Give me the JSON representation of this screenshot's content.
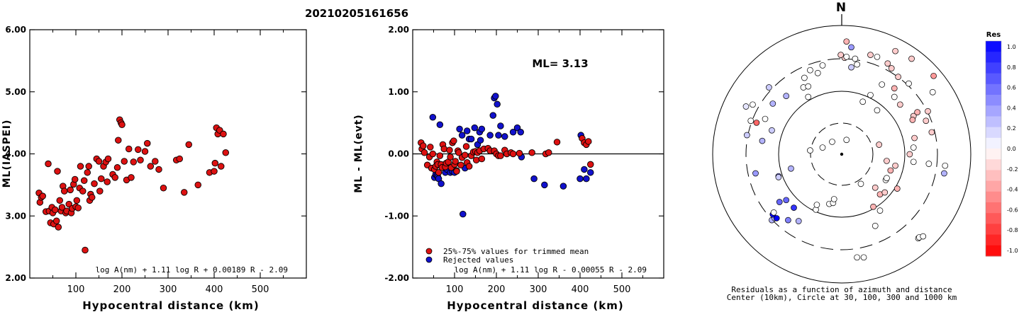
{
  "title": "20210205161656",
  "chart_data": [
    {
      "type": "scatter",
      "name": "left",
      "xlabel": "Hypocentral distance (km)",
      "ylabel": "ML(IASPEI)",
      "xlim": [
        0,
        600
      ],
      "ylim": [
        2.0,
        6.0
      ],
      "xticks": [
        "100",
        "200",
        "300",
        "400",
        "500"
      ],
      "yticks": [
        "2.00",
        "3.00",
        "4.00",
        "5.00",
        "6.00"
      ],
      "formula": "log A(nm) + 1.11 log R + 0.00189 R - 2.09",
      "points": [
        [
          20,
          3.37
        ],
        [
          22,
          3.22
        ],
        [
          25,
          3.3
        ],
        [
          28,
          3.32
        ],
        [
          35,
          3.07
        ],
        [
          40,
          3.84
        ],
        [
          42,
          3.08
        ],
        [
          45,
          2.89
        ],
        [
          48,
          3.14
        ],
        [
          50,
          3.05
        ],
        [
          52,
          2.87
        ],
        [
          55,
          3.1
        ],
        [
          58,
          2.92
        ],
        [
          60,
          3.72
        ],
        [
          62,
          2.82
        ],
        [
          65,
          3.25
        ],
        [
          68,
          3.08
        ],
        [
          70,
          3.14
        ],
        [
          72,
          3.48
        ],
        [
          75,
          3.4
        ],
        [
          78,
          3.05
        ],
        [
          80,
          3.08
        ],
        [
          85,
          3.19
        ],
        [
          88,
          3.42
        ],
        [
          90,
          3.05
        ],
        [
          92,
          3.12
        ],
        [
          95,
          3.51
        ],
        [
          98,
          3.59
        ],
        [
          100,
          3.15
        ],
        [
          102,
          3.25
        ],
        [
          105,
          3.13
        ],
        [
          108,
          3.45
        ],
        [
          110,
          3.8
        ],
        [
          115,
          3.4
        ],
        [
          118,
          3.57
        ],
        [
          120,
          2.45
        ],
        [
          125,
          3.7
        ],
        [
          128,
          3.8
        ],
        [
          130,
          3.25
        ],
        [
          132,
          3.35
        ],
        [
          135,
          3.3
        ],
        [
          140,
          3.52
        ],
        [
          145,
          3.92
        ],
        [
          150,
          3.88
        ],
        [
          152,
          3.4
        ],
        [
          155,
          3.6
        ],
        [
          160,
          3.8
        ],
        [
          165,
          3.87
        ],
        [
          168,
          3.55
        ],
        [
          170,
          3.92
        ],
        [
          180,
          3.67
        ],
        [
          185,
          3.62
        ],
        [
          190,
          3.78
        ],
        [
          192,
          4.22
        ],
        [
          195,
          4.55
        ],
        [
          198,
          4.5
        ],
        [
          200,
          4.47
        ],
        [
          205,
          3.88
        ],
        [
          210,
          3.58
        ],
        [
          215,
          4.08
        ],
        [
          220,
          3.62
        ],
        [
          225,
          3.87
        ],
        [
          235,
          4.07
        ],
        [
          240,
          3.9
        ],
        [
          250,
          4.04
        ],
        [
          255,
          4.17
        ],
        [
          262,
          3.8
        ],
        [
          272,
          3.88
        ],
        [
          280,
          3.75
        ],
        [
          290,
          3.45
        ],
        [
          318,
          3.9
        ],
        [
          325,
          3.92
        ],
        [
          335,
          3.38
        ],
        [
          345,
          4.15
        ],
        [
          365,
          3.5
        ],
        [
          390,
          3.7
        ],
        [
          400,
          3.72
        ],
        [
          402,
          3.85
        ],
        [
          405,
          4.42
        ],
        [
          408,
          4.32
        ],
        [
          412,
          4.38
        ],
        [
          415,
          3.8
        ],
        [
          420,
          4.32
        ],
        [
          425,
          4.02
        ]
      ]
    },
    {
      "type": "scatter",
      "name": "middle",
      "xlabel": "Hypocentral distance (km)",
      "ylabel": "ML - ML(evt)",
      "xlim": [
        0,
        600
      ],
      "ylim": [
        -2.0,
        2.0
      ],
      "xticks": [
        "100",
        "200",
        "300",
        "400",
        "500"
      ],
      "yticks": [
        "-2.00",
        "-1.00",
        "0.00",
        "1.00",
        "2.00"
      ],
      "ml_text": "ML= 3.13",
      "formula": "log A(nm) + 1.11 log R - 0.00055 R - 2.09",
      "legend": [
        {
          "label": "25%-75% values for trimmed mean",
          "color": "#dd1111"
        },
        {
          "label": "Rejected values",
          "color": "#1111cc"
        }
      ],
      "points_kept": [
        [
          20,
          0.18
        ],
        [
          22,
          0.08
        ],
        [
          25,
          0.13
        ],
        [
          28,
          0.02
        ],
        [
          35,
          -0.18
        ],
        [
          40,
          -0.05
        ],
        [
          42,
          0.11
        ],
        [
          45,
          -0.23
        ],
        [
          48,
          0.0
        ],
        [
          52,
          -0.25
        ],
        [
          55,
          -0.2
        ],
        [
          58,
          -0.13
        ],
        [
          60,
          -0.17
        ],
        [
          62,
          -0.3
        ],
        [
          65,
          -0.03
        ],
        [
          68,
          -0.17
        ],
        [
          70,
          -0.22
        ],
        [
          72,
          0.15
        ],
        [
          75,
          0.08
        ],
        [
          78,
          -0.21
        ],
        [
          80,
          -0.15
        ],
        [
          85,
          -0.13
        ],
        [
          88,
          0.06
        ],
        [
          90,
          -0.05
        ],
        [
          92,
          -0.22
        ],
        [
          95,
          0.18
        ],
        [
          98,
          0.21
        ],
        [
          100,
          -0.17
        ],
        [
          102,
          -0.12
        ],
        [
          105,
          -0.28
        ],
        [
          108,
          0.05
        ],
        [
          110,
          0.02
        ],
        [
          115,
          -0.18
        ],
        [
          118,
          -0.06
        ],
        [
          125,
          -0.02
        ],
        [
          128,
          0.12
        ],
        [
          130,
          -0.14
        ],
        [
          135,
          -0.2
        ],
        [
          140,
          -0.03
        ],
        [
          145,
          0.03
        ],
        [
          150,
          0.04
        ],
        [
          152,
          -0.1
        ],
        [
          155,
          0.02
        ],
        [
          160,
          0.05
        ],
        [
          165,
          -0.08
        ],
        [
          170,
          0.08
        ],
        [
          180,
          0.09
        ],
        [
          185,
          0.05
        ],
        [
          195,
          0.05
        ],
        [
          200,
          0.0
        ],
        [
          205,
          -0.03
        ],
        [
          210,
          -0.03
        ],
        [
          220,
          0.06
        ],
        [
          225,
          0.0
        ],
        [
          235,
          0.02
        ],
        [
          240,
          0.0
        ],
        [
          255,
          0.01
        ],
        [
          285,
          0.02
        ],
        [
          318,
          0.0
        ],
        [
          325,
          0.02
        ],
        [
          345,
          0.19
        ],
        [
          405,
          0.25
        ],
        [
          410,
          0.18
        ],
        [
          415,
          0.15
        ],
        [
          420,
          0.2
        ],
        [
          425,
          -0.17
        ]
      ],
      "points_rejected": [
        [
          48,
          0.59
        ],
        [
          52,
          -0.38
        ],
        [
          55,
          -0.33
        ],
        [
          58,
          -0.35
        ],
        [
          60,
          -0.37
        ],
        [
          62,
          -0.4
        ],
        [
          65,
          0.47
        ],
        [
          68,
          -0.48
        ],
        [
          72,
          -0.2
        ],
        [
          78,
          -0.3
        ],
        [
          82,
          -0.25
        ],
        [
          90,
          -0.3
        ],
        [
          95,
          -0.28
        ],
        [
          100,
          -0.3
        ],
        [
          105,
          -0.27
        ],
        [
          112,
          0.4
        ],
        [
          118,
          0.3
        ],
        [
          120,
          -0.97
        ],
        [
          125,
          -0.23
        ],
        [
          130,
          0.37
        ],
        [
          135,
          0.24
        ],
        [
          140,
          0.24
        ],
        [
          148,
          0.42
        ],
        [
          155,
          0.15
        ],
        [
          160,
          0.35
        ],
        [
          162,
          0.22
        ],
        [
          165,
          0.4
        ],
        [
          185,
          0.3
        ],
        [
          192,
          0.62
        ],
        [
          195,
          0.9
        ],
        [
          198,
          0.93
        ],
        [
          202,
          0.8
        ],
        [
          205,
          0.3
        ],
        [
          210,
          0.45
        ],
        [
          220,
          0.28
        ],
        [
          240,
          0.35
        ],
        [
          250,
          0.42
        ],
        [
          258,
          0.35
        ],
        [
          260,
          -0.05
        ],
        [
          290,
          -0.4
        ],
        [
          315,
          -0.5
        ],
        [
          360,
          -0.52
        ],
        [
          400,
          -0.4
        ],
        [
          402,
          0.3
        ],
        [
          410,
          -0.25
        ],
        [
          415,
          -0.4
        ],
        [
          425,
          -0.3
        ]
      ]
    },
    {
      "type": "scatter",
      "name": "polar",
      "north_label": "N",
      "caption_line1": "Residuals as a function of azimuth and distance",
      "caption_line2": "Center (10km), Circle at 30, 100, 300 and 1000 km",
      "points": [
        [
          0.8,
          -0.88,
          0.0
        ],
        [
          0.81,
          -0.87,
          0.0
        ],
        [
          0.85,
          -0.86,
          0.0
        ],
        [
          -0.73,
          -0.69,
          0.3
        ],
        [
          -0.7,
          -0.67,
          0.3
        ],
        [
          -0.68,
          -0.67,
          1.0
        ],
        [
          -0.72,
          -0.63,
          1.0
        ],
        [
          -0.71,
          -0.61,
          0.0
        ],
        [
          -0.13,
          -0.52,
          0.0
        ],
        [
          -0.09,
          -0.51,
          0.0
        ],
        [
          -0.08,
          -0.47,
          0.0
        ],
        [
          0.46,
          -0.27,
          0.0
        ],
        [
          0.47,
          -0.25,
          0.0
        ],
        [
          0.75,
          -0.08,
          0.0
        ],
        [
          0.2,
          -0.31,
          0.0
        ],
        [
          0.35,
          -0.35,
          -0.2
        ],
        [
          0.58,
          -0.36,
          -0.3
        ],
        [
          0.51,
          -0.17,
          -0.3
        ],
        [
          0.56,
          -0.12,
          -0.2
        ],
        [
          0.71,
          0.0,
          -0.2
        ],
        [
          0.76,
          0.17,
          -0.2
        ],
        [
          0.75,
          0.07,
          0.0
        ],
        [
          0.75,
          0.4,
          -0.2
        ],
        [
          0.61,
          0.52,
          -0.2
        ],
        [
          0.59,
          0.81,
          -0.2
        ],
        [
          0.52,
          0.9,
          -0.2
        ],
        [
          0.48,
          0.95,
          -0.2
        ],
        [
          0.74,
          0.36,
          -0.3
        ],
        [
          0.79,
          0.44,
          -0.3
        ],
        [
          0.94,
          0.23,
          -0.2
        ],
        [
          0.9,
          0.45,
          -0.2
        ],
        [
          0.96,
          0.82,
          -0.4
        ],
        [
          0.73,
          1.0,
          -0.2
        ],
        [
          0.56,
          1.08,
          -0.2
        ],
        [
          0.37,
          1.02,
          0.0
        ],
        [
          0.03,
          1.01,
          -0.2
        ],
        [
          -0.01,
          1.04,
          -0.2
        ],
        [
          0.14,
          1.0,
          0.0
        ],
        [
          0.16,
          0.94,
          0.0
        ],
        [
          0.1,
          0.91,
          0.2
        ],
        [
          -0.2,
          0.93,
          0.0
        ],
        [
          -0.33,
          0.88,
          0.0
        ],
        [
          -0.39,
          0.8,
          0.0
        ],
        [
          -0.4,
          0.7,
          0.0
        ],
        [
          -0.35,
          0.6,
          0.0
        ],
        [
          -0.58,
          0.61,
          0.3
        ],
        [
          -0.76,
          0.7,
          0.2
        ],
        [
          -0.93,
          0.52,
          0.0
        ],
        [
          -0.8,
          0.37,
          0.0
        ],
        [
          -0.89,
          0.33,
          -0.6
        ],
        [
          -0.95,
          0.35,
          0.0
        ],
        [
          -0.99,
          0.2,
          0.2
        ],
        [
          -0.83,
          0.14,
          0.3
        ],
        [
          -0.73,
          0.25,
          0.2
        ],
        [
          -1.0,
          0.5,
          0.1
        ],
        [
          -0.9,
          -0.2,
          0.4
        ],
        [
          -0.66,
          -0.23,
          0.5
        ],
        [
          -0.53,
          -0.15,
          0.3
        ],
        [
          -0.33,
          0.04,
          0.0
        ],
        [
          -0.2,
          0.07,
          0.0
        ],
        [
          -0.1,
          0.13,
          0.0
        ],
        [
          0.05,
          0.15,
          0.0
        ],
        [
          0.39,
          0.1,
          -0.2
        ],
        [
          0.47,
          -0.07,
          -0.2
        ],
        [
          -0.72,
          0.53,
          0.3
        ],
        [
          -0.35,
          0.71,
          0.0
        ],
        [
          -0.25,
          0.85,
          0.0
        ],
        [
          0.05,
          1.18,
          -0.3
        ],
        [
          0.1,
          1.12,
          0.4
        ],
        [
          0.3,
          1.04,
          -0.2
        ],
        [
          0.42,
          0.73,
          0.0
        ],
        [
          0.22,
          0.55,
          0.0
        ],
        [
          0.3,
          0.62,
          0.0
        ],
        [
          0.37,
          0.46,
          0.0
        ],
        [
          0.55,
          0.6,
          0.0
        ],
        [
          0.55,
          0.69,
          -0.3
        ],
        [
          0.95,
          0.65,
          0.0
        ],
        [
          0.33,
          -0.55,
          -0.3
        ],
        [
          0.4,
          -0.42,
          -0.3
        ],
        [
          0.45,
          -0.4,
          -0.2
        ],
        [
          -0.27,
          -0.58,
          0.0
        ],
        [
          -0.26,
          -0.53,
          0.0
        ],
        [
          -0.58,
          -0.48,
          0.6
        ],
        [
          -0.65,
          -0.5,
          0.6
        ],
        [
          -0.5,
          -0.56,
          0.8
        ],
        [
          0.4,
          -0.59,
          0.0
        ],
        [
          0.35,
          -0.75,
          0.0
        ],
        [
          0.23,
          -1.08,
          0.0
        ],
        [
          0.16,
          -1.08,
          0.0
        ],
        [
          -0.45,
          -0.7,
          0.3
        ],
        [
          -0.56,
          -0.69,
          0.5
        ],
        [
          0.91,
          -0.1,
          0.0
        ],
        [
          1.07,
          -0.2,
          0.3
        ],
        [
          1.08,
          -0.12,
          0.0
        ],
        [
          0.88,
          0.35,
          -0.2
        ],
        [
          -0.66,
          -0.24,
          0.2
        ],
        [
          0.05,
          1.02,
          0.0
        ],
        [
          0.7,
          0.74,
          0.0
        ]
      ],
      "colorbar": {
        "title": "Res",
        "labels": [
          "1.0",
          "0.8",
          "0.6",
          "0.4",
          "0.2",
          "0.0",
          "-0.2",
          "-0.4",
          "-0.6",
          "-0.8",
          "-1.0"
        ]
      }
    }
  ]
}
